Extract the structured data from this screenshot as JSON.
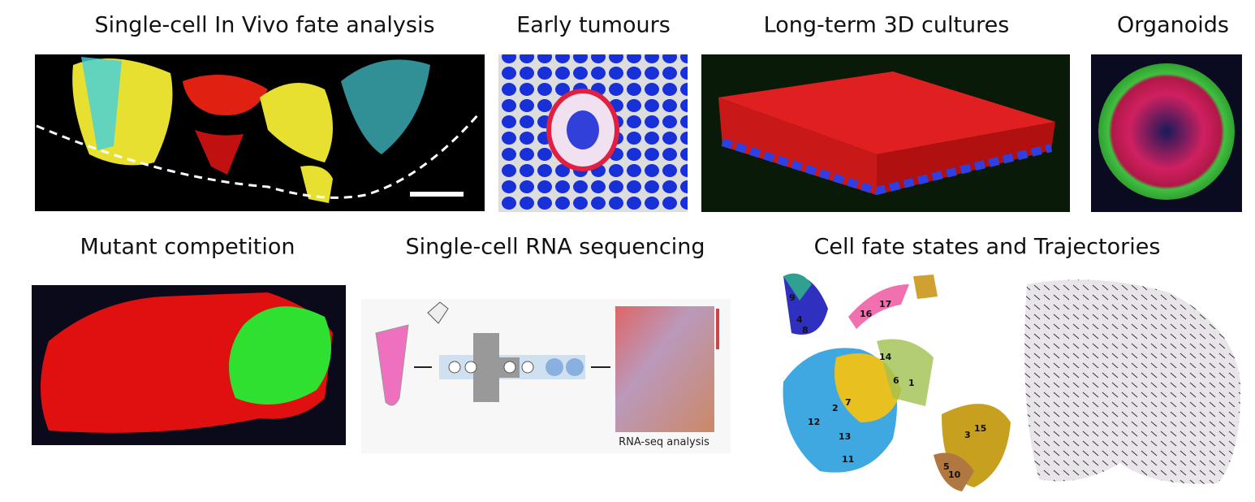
{
  "panels": [
    {
      "title": "Single-cell In Vivo fate analysis"
    },
    {
      "title": "Early tumours"
    },
    {
      "title": "Long-term 3D cultures"
    },
    {
      "title": "Organoids"
    },
    {
      "title": "Mutant competition"
    },
    {
      "title": "Single-cell RNA sequencing"
    },
    {
      "title": "Cell fate states and Trajectories"
    }
  ],
  "rna_seq": {
    "label": "RNA-seq analysis"
  },
  "clusters": [
    {
      "label": "9"
    },
    {
      "label": "4"
    },
    {
      "label": "8"
    },
    {
      "label": "16"
    },
    {
      "label": "17"
    },
    {
      "label": "14"
    },
    {
      "label": "6"
    },
    {
      "label": "1"
    },
    {
      "label": "2"
    },
    {
      "label": "7"
    },
    {
      "label": "12"
    },
    {
      "label": "13"
    },
    {
      "label": "11"
    },
    {
      "label": "3"
    },
    {
      "label": "15"
    },
    {
      "label": "5"
    },
    {
      "label": "10"
    }
  ]
}
